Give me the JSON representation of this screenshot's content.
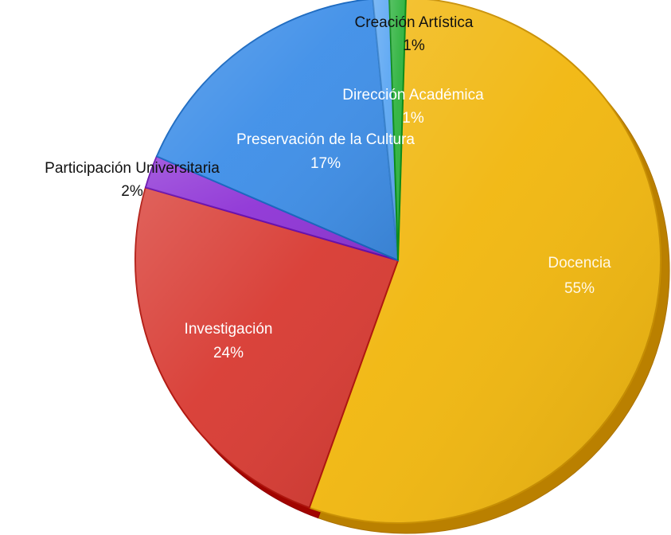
{
  "chart_data": {
    "type": "pie",
    "slices": [
      {
        "label": "Docencia",
        "value": 55,
        "display_value": "55%",
        "color": "#f1b70f",
        "label_placement": "inside"
      },
      {
        "label": "Investigación",
        "value": 24,
        "display_value": "24%",
        "color": "#d83b33",
        "label_placement": "inside"
      },
      {
        "label": "Participación Universitaria",
        "value": 2,
        "display_value": "2%",
        "color": "#8f35d6",
        "label_placement": "outside"
      },
      {
        "label": "Preservación de la Cultura",
        "value": 17,
        "display_value": "17%",
        "color": "#3f8fe8",
        "label_placement": "inside"
      },
      {
        "label": "Creación Artística",
        "value": 1,
        "display_value": "1%",
        "color": "#5ea8f3",
        "label_placement": "outside"
      },
      {
        "label": "Dirección Académica",
        "value": 1,
        "display_value": "1%",
        "color": "#2fb33f",
        "label_placement": "inside"
      }
    ]
  }
}
